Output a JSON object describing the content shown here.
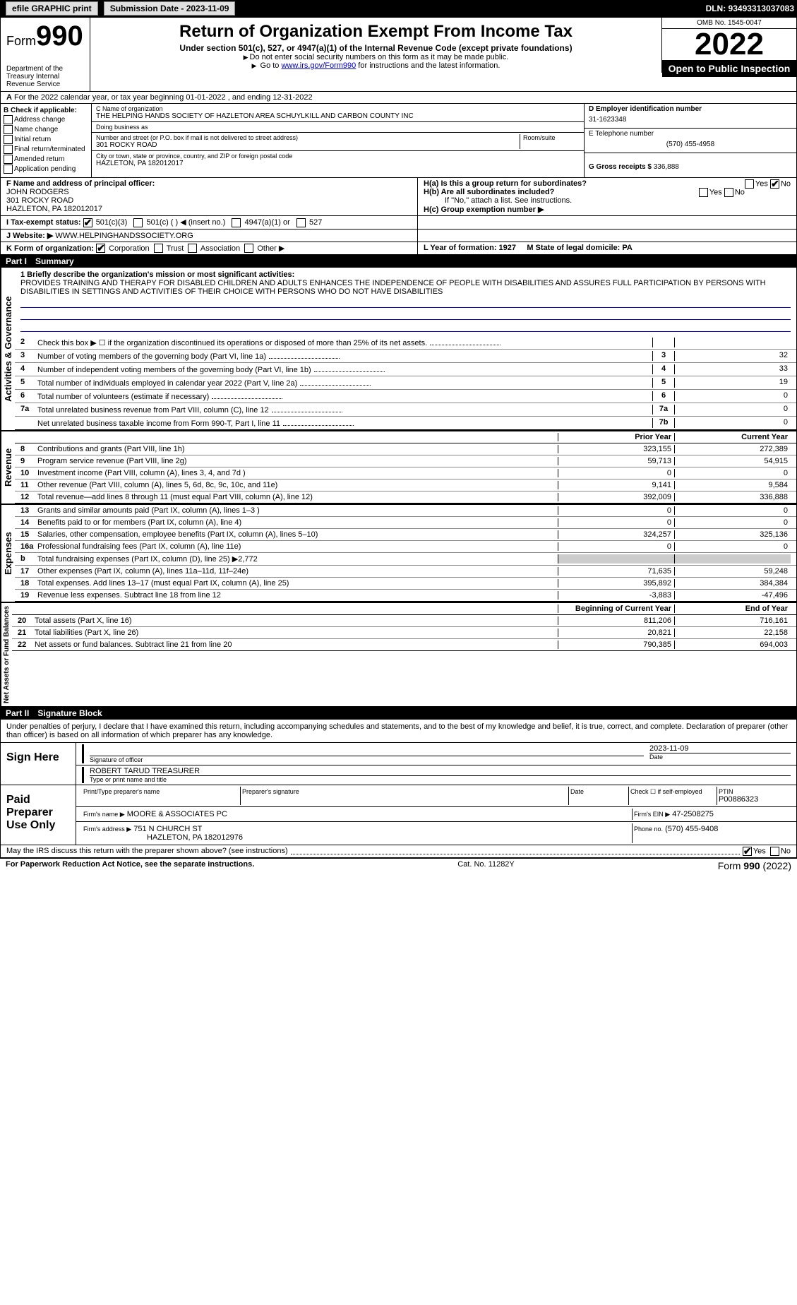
{
  "topbar": {
    "efile": "efile GRAPHIC print",
    "sub_label": "Submission Date - 2023-11-09",
    "dln_label": "DLN: 93493313037083"
  },
  "header": {
    "form": "Form",
    "form_num": "990",
    "title": "Return of Organization Exempt From Income Tax",
    "subtitle": "Under section 501(c), 527, or 4947(a)(1) of the Internal Revenue Code (except private foundations)",
    "note1": "Do not enter social security numbers on this form as it may be made public.",
    "note2_pre": "Go to ",
    "note2_link": "www.irs.gov/Form990",
    "note2_post": " for instructions and the latest information.",
    "omb": "OMB No. 1545-0047",
    "year": "2022",
    "open": "Open to Public Inspection",
    "dept": "Department of the Treasury Internal Revenue Service"
  },
  "section_a": "For the 2022 calendar year, or tax year beginning 01-01-2022   , and ending 12-31-2022",
  "col_b": {
    "title": "B Check if applicable:",
    "items": [
      "Address change",
      "Name change",
      "Initial return",
      "Final return/terminated",
      "Amended return",
      "Application pending"
    ]
  },
  "col_c": {
    "name_label": "C Name of organization",
    "name": "THE HELPING HANDS SOCIETY OF HAZLETON AREA SCHUYLKILL AND CARBON COUNTY INC",
    "dba_label": "Doing business as",
    "dba": "",
    "addr_label": "Number and street (or P.O. box if mail is not delivered to street address)",
    "addr": "301 ROCKY ROAD",
    "room_label": "Room/suite",
    "city_label": "City or town, state or province, country, and ZIP or foreign postal code",
    "city": "HAZLETON, PA  182012017"
  },
  "col_d": {
    "ein_label": "D Employer identification number",
    "ein": "31-1623348",
    "phone_label": "E Telephone number",
    "phone": "(570) 455-4958",
    "gross_label": "G Gross receipts $",
    "gross": "336,888"
  },
  "row_f": {
    "label": "F  Name and address of principal officer:",
    "name": "JOHN RODGERS",
    "addr1": "301 ROCKY ROAD",
    "addr2": "HAZLETON, PA  182012017"
  },
  "row_h": {
    "ha": "H(a)  Is this a group return for subordinates?",
    "hb": "H(b)  Are all subordinates included?",
    "hb_note": "If \"No,\" attach a list. See instructions.",
    "hc": "H(c)  Group exemption number ▶",
    "yes": "Yes",
    "no": "No"
  },
  "row_i": {
    "label": "I  Tax-exempt status:",
    "opts": [
      "501(c)(3)",
      "501(c) (   ) ◀ (insert no.)",
      "4947(a)(1) or",
      "527"
    ]
  },
  "row_j": {
    "label": "J  Website: ▶",
    "val": "WWW.HELPINGHANDSSOCIETY.ORG"
  },
  "row_k": {
    "label": "K Form of organization:",
    "opts": [
      "Corporation",
      "Trust",
      "Association",
      "Other ▶"
    ]
  },
  "row_l": {
    "l": "L Year of formation: 1927",
    "m": "M State of legal domicile: PA"
  },
  "part1": {
    "title": "Part I",
    "name": "Summary"
  },
  "mission": {
    "label": "1  Briefly describe the organization's mission or most significant activities:",
    "text": "PROVIDES TRAINING AND THERAPY FOR DISABLED CHILDREN AND ADULTS ENHANCES THE INDEPENDENCE OF PEOPLE WITH DISABILITIES AND ASSURES FULL PARTICIPATION BY PERSONS WITH DISABILITIES IN SETTINGS AND ACTIVITIES OF THEIR CHOICE WITH PERSONS WHO DO NOT HAVE DISABILITIES"
  },
  "gov_lines": [
    {
      "num": "2",
      "txt": "Check this box ▶ ☐  if the organization discontinued its operations or disposed of more than 25% of its net assets.",
      "box": "",
      "val": ""
    },
    {
      "num": "3",
      "txt": "Number of voting members of the governing body (Part VI, line 1a)",
      "box": "3",
      "val": "32"
    },
    {
      "num": "4",
      "txt": "Number of independent voting members of the governing body (Part VI, line 1b)",
      "box": "4",
      "val": "33"
    },
    {
      "num": "5",
      "txt": "Total number of individuals employed in calendar year 2022 (Part V, line 2a)",
      "box": "5",
      "val": "19"
    },
    {
      "num": "6",
      "txt": "Total number of volunteers (estimate if necessary)",
      "box": "6",
      "val": "0"
    },
    {
      "num": "7a",
      "txt": "Total unrelated business revenue from Part VIII, column (C), line 12",
      "box": "7a",
      "val": "0"
    },
    {
      "num": "",
      "txt": "Net unrelated business taxable income from Form 990-T, Part I, line 11",
      "box": "7b",
      "val": "0"
    }
  ],
  "col_headers": {
    "prior": "Prior Year",
    "current": "Current Year"
  },
  "rev_lines": [
    {
      "num": "8",
      "txt": "Contributions and grants (Part VIII, line 1h)",
      "prior": "323,155",
      "curr": "272,389"
    },
    {
      "num": "9",
      "txt": "Program service revenue (Part VIII, line 2g)",
      "prior": "59,713",
      "curr": "54,915"
    },
    {
      "num": "10",
      "txt": "Investment income (Part VIII, column (A), lines 3, 4, and 7d )",
      "prior": "0",
      "curr": "0"
    },
    {
      "num": "11",
      "txt": "Other revenue (Part VIII, column (A), lines 5, 6d, 8c, 9c, 10c, and 11e)",
      "prior": "9,141",
      "curr": "9,584"
    },
    {
      "num": "12",
      "txt": "Total revenue—add lines 8 through 11 (must equal Part VIII, column (A), line 12)",
      "prior": "392,009",
      "curr": "336,888"
    }
  ],
  "exp_lines": [
    {
      "num": "13",
      "txt": "Grants and similar amounts paid (Part IX, column (A), lines 1–3 )",
      "prior": "0",
      "curr": "0"
    },
    {
      "num": "14",
      "txt": "Benefits paid to or for members (Part IX, column (A), line 4)",
      "prior": "0",
      "curr": "0"
    },
    {
      "num": "15",
      "txt": "Salaries, other compensation, employee benefits (Part IX, column (A), lines 5–10)",
      "prior": "324,257",
      "curr": "325,136"
    },
    {
      "num": "16a",
      "txt": "Professional fundraising fees (Part IX, column (A), line 11e)",
      "prior": "0",
      "curr": "0"
    },
    {
      "num": "b",
      "txt": "Total fundraising expenses (Part IX, column (D), line 25) ▶2,772",
      "prior": "",
      "curr": "",
      "shaded": true
    },
    {
      "num": "17",
      "txt": "Other expenses (Part IX, column (A), lines 11a–11d, 11f–24e)",
      "prior": "71,635",
      "curr": "59,248"
    },
    {
      "num": "18",
      "txt": "Total expenses. Add lines 13–17 (must equal Part IX, column (A), line 25)",
      "prior": "395,892",
      "curr": "384,384"
    },
    {
      "num": "19",
      "txt": "Revenue less expenses. Subtract line 18 from line 12",
      "prior": "-3,883",
      "curr": "-47,496"
    }
  ],
  "net_headers": {
    "begin": "Beginning of Current Year",
    "end": "End of Year"
  },
  "net_lines": [
    {
      "num": "20",
      "txt": "Total assets (Part X, line 16)",
      "prior": "811,206",
      "curr": "716,161"
    },
    {
      "num": "21",
      "txt": "Total liabilities (Part X, line 26)",
      "prior": "20,821",
      "curr": "22,158"
    },
    {
      "num": "22",
      "txt": "Net assets or fund balances. Subtract line 21 from line 20",
      "prior": "790,385",
      "curr": "694,003"
    }
  ],
  "sidebars": {
    "gov": "Activities & Governance",
    "rev": "Revenue",
    "exp": "Expenses",
    "net": "Net Assets or Fund Balances"
  },
  "part2": {
    "title": "Part II",
    "name": "Signature Block"
  },
  "declare": "Under penalties of perjury, I declare that I have examined this return, including accompanying schedules and statements, and to the best of my knowledge and belief, it is true, correct, and complete. Declaration of preparer (other than officer) is based on all information of which preparer has any knowledge.",
  "sign": {
    "lbl": "Sign Here",
    "sig_label": "Signature of officer",
    "date_label": "Date",
    "date": "2023-11-09",
    "name": "ROBERT TARUD TREASURER",
    "name_label": "Type or print name and title"
  },
  "paid": {
    "lbl": "Paid Preparer Use Only",
    "print_label": "Print/Type preparer's name",
    "sig_label": "Preparer's signature",
    "date_label": "Date",
    "check_label": "Check ☐ if self-employed",
    "ptin_label": "PTIN",
    "ptin": "P00886323",
    "firm_name_label": "Firm's name    ▶",
    "firm_name": "MOORE & ASSOCIATES PC",
    "firm_ein_label": "Firm's EIN ▶",
    "firm_ein": "47-2508275",
    "firm_addr_label": "Firm's address ▶",
    "firm_addr": "751 N CHURCH ST",
    "firm_city": "HAZLETON, PA  182012976",
    "phone_label": "Phone no.",
    "phone": "(570) 455-9408"
  },
  "may_discuss": "May the IRS discuss this return with the preparer shown above? (see instructions)",
  "footer": {
    "left": "For Paperwork Reduction Act Notice, see the separate instructions.",
    "center": "Cat. No. 11282Y",
    "right": "Form 990 (2022)"
  }
}
